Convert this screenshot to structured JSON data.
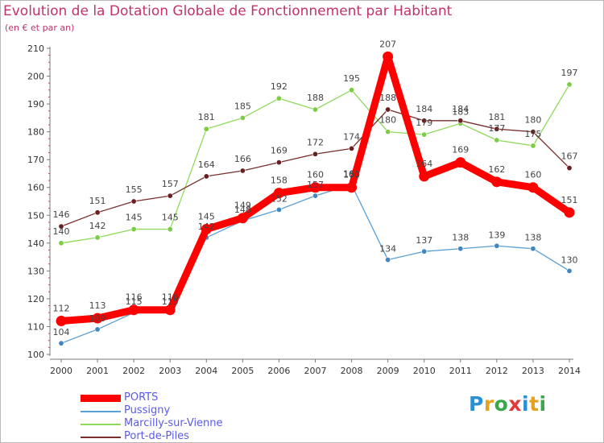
{
  "title": "Evolution de la Dotation Globale de Fonctionnement par Habitant",
  "subtitle": "(en € et par an)",
  "logo": {
    "letters": [
      "P",
      "r",
      "o",
      "x",
      "i",
      "t",
      "i"
    ],
    "colors": [
      "#2b8fd6",
      "#e8a020",
      "#3aa84a",
      "#e03a3a",
      "#2b8fd6",
      "#e8a020",
      "#3aa84a"
    ]
  },
  "chart_data": {
    "type": "line",
    "title": "Evolution de la Dotation Globale de Fonctionnement par Habitant",
    "subtitle": "(en € et par an)",
    "x": [
      "2000",
      "2001",
      "2002",
      "2003",
      "2004",
      "2005",
      "2006",
      "2007",
      "2008",
      "2009",
      "2010",
      "2011",
      "2012",
      "2013",
      "2014"
    ],
    "ylim": [
      100,
      210
    ],
    "yticks": [
      "100",
      "110",
      "120",
      "130",
      "140",
      "150",
      "160",
      "170",
      "180",
      "190",
      "200",
      "210"
    ],
    "grid": false,
    "legend_position": "bottom-left",
    "series": [
      {
        "name": "Pussigny",
        "color": "#5a9fd4",
        "marker": "#3f86c2",
        "emphasis": false,
        "values": [
          104,
          109,
          115,
          115,
          142,
          148,
          152,
          157,
          161,
          134,
          137,
          138,
          139,
          138,
          130
        ],
        "labels": [
          "104",
          "109",
          "115",
          "115",
          "142",
          "148",
          "152",
          "157",
          "161",
          "134",
          "137",
          "138",
          "139",
          "138",
          "130"
        ]
      },
      {
        "name": "Marcilly-sur-Vienne",
        "color": "#8fd95c",
        "marker": "#7ccc45",
        "emphasis": false,
        "values": [
          140,
          142,
          145,
          145,
          181,
          185,
          192,
          188,
          195,
          180,
          179,
          183,
          177,
          175,
          197
        ],
        "labels": [
          "140",
          "142",
          "145",
          "145",
          "181",
          "185",
          "192",
          "188",
          "195",
          "180",
          "179",
          "183",
          "177",
          "175",
          "197"
        ]
      },
      {
        "name": "Port-de-Piles",
        "color": "#7a2e2e",
        "marker": "#6a1f1f",
        "emphasis": false,
        "values": [
          146,
          151,
          155,
          157,
          164,
          166,
          169,
          172,
          174,
          188,
          184,
          184,
          181,
          180,
          167
        ],
        "labels": [
          "146",
          "151",
          "155",
          "157",
          "164",
          "166",
          "169",
          "172",
          "174",
          "188",
          "184",
          "184",
          "181",
          "180",
          "167"
        ]
      },
      {
        "name": "PORTS",
        "color": "#ff0000",
        "marker": "#ff0000",
        "emphasis": true,
        "values": [
          112,
          113,
          116,
          116,
          145,
          149,
          158,
          160,
          160,
          207,
          164,
          169,
          162,
          160,
          151
        ],
        "labels": [
          "112",
          "113",
          "116",
          "116",
          "145",
          "149",
          "158",
          "160",
          "160",
          "207",
          "164",
          "169",
          "162",
          "160",
          "151"
        ]
      }
    ],
    "legend_order": [
      "PORTS",
      "Pussigny",
      "Marcilly-sur-Vienne",
      "Port-de-Piles"
    ]
  }
}
